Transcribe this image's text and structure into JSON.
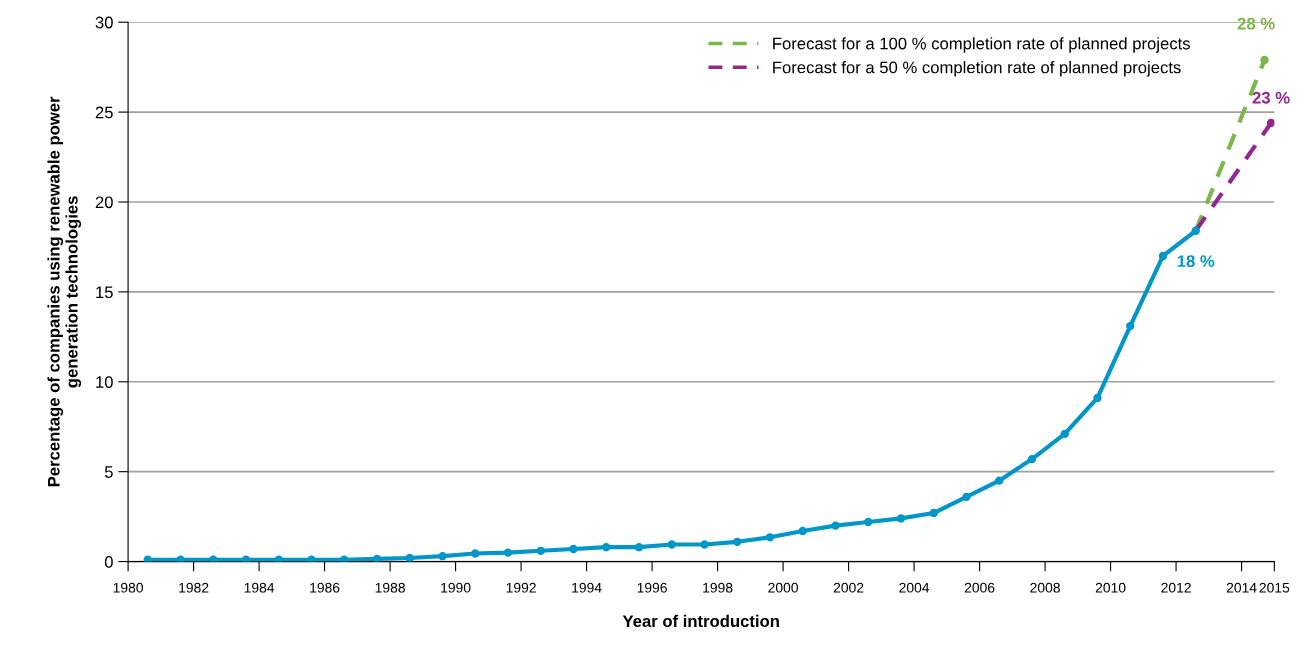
{
  "chart_data": {
    "type": "line",
    "xlabel": "Year of introduction",
    "ylabel": "Percentage of companies using renewable power\ngeneration technologies",
    "series": [
      {
        "color": "#0096c8",
        "x": [
          1980.6,
          1981.6,
          1982.6,
          1983.6,
          1984.6,
          1985.6,
          1986.6,
          1987.6,
          1988.6,
          1989.6,
          1990.6,
          1991.6,
          1992.6,
          1993.6,
          1994.6,
          1995.6,
          1996.6,
          1997.6,
          1998.6,
          1999.6,
          2000.6,
          2001.6,
          2002.6,
          2003.6,
          2004.6,
          2005.6,
          2006.6,
          2007.6,
          2008.6,
          2009.6,
          2010.6,
          2011.6,
          2012.6
        ],
        "values": [
          0.1,
          0.1,
          0.1,
          0.1,
          0.1,
          0.1,
          0.1,
          0.15,
          0.2,
          0.3,
          0.45,
          0.5,
          0.6,
          0.7,
          0.8,
          0.8,
          0.95,
          0.95,
          1.1,
          1.35,
          1.7,
          2.0,
          2.2,
          2.4,
          2.7,
          3.6,
          4.5,
          5.7,
          7.1,
          9.1,
          13.1,
          17.0,
          18.4
        ]
      },
      {
        "name": "Forecast for a 100 % completion rate of planned projects",
        "color": "#7ab648",
        "line_style": "dashed",
        "x": [
          2012.6,
          2014.7
        ],
        "values": [
          18.4,
          27.9
        ]
      },
      {
        "name": "Forecast for a 50 % completion rate of planned projects",
        "color": "#93278f",
        "line_style": "dashed",
        "x": [
          2012.6,
          2014.9
        ],
        "values": [
          18.4,
          24.4
        ]
      }
    ],
    "xlim": [
      1980,
      2015
    ],
    "xticks": [
      1980,
      1982,
      1984,
      1986,
      1988,
      1990,
      1992,
      1994,
      1996,
      1998,
      2000,
      2002,
      2004,
      2006,
      2008,
      2010,
      2012,
      2014,
      2015
    ],
    "ylim": [
      0,
      30
    ],
    "yticks": [
      0,
      5,
      10,
      15,
      20,
      25,
      30
    ],
    "grid": "y",
    "legend": "top right",
    "marker": "circle",
    "line_style": "solid",
    "annotations": [
      {
        "text": "28 %",
        "x": 2014.7,
        "y": 27.9
      },
      {
        "text": "23 %",
        "x": 2014.9,
        "y": 24.4
      },
      {
        "text": "18 %",
        "x": 2012.6,
        "y": 18.4
      }
    ]
  }
}
